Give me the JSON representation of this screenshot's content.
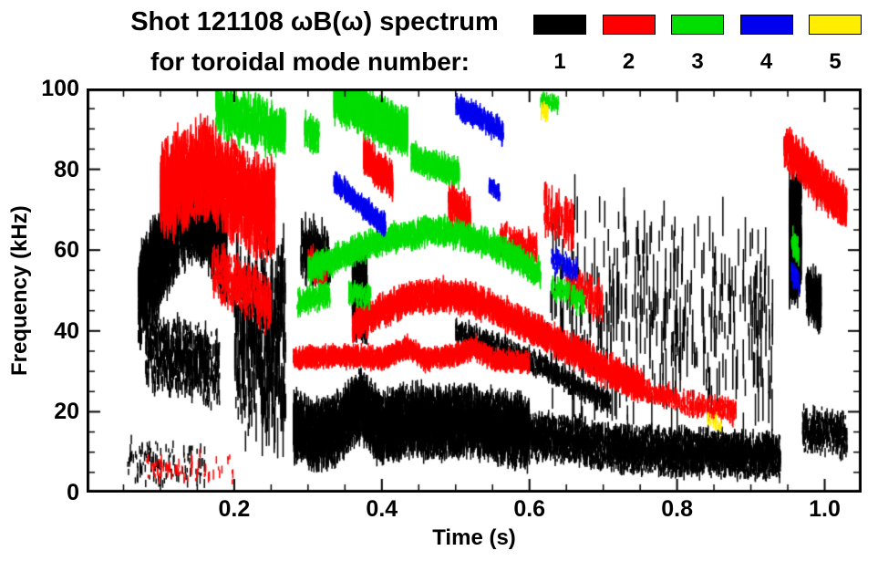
{
  "chart_data": {
    "type": "scatter",
    "title": "Shot 121108 ωB(ω) spectrum",
    "subtitle": "for toroidal mode number:",
    "xlabel": "Time (s)",
    "ylabel": "Frequency (kHz)",
    "xlim": [
      0,
      1.05
    ],
    "ylim": [
      0,
      100
    ],
    "xticks": [
      0.2,
      0.4,
      0.6,
      0.8,
      1.0
    ],
    "yticks": [
      0,
      20,
      40,
      60,
      80,
      100
    ],
    "x_minor_step": 0.05,
    "y_minor_step": 5,
    "x_minors_per_major": 4,
    "y_minors_per_major": 4,
    "grid": false,
    "legend_position": "top-right",
    "legend": [
      {
        "label": "1",
        "color": "#000000"
      },
      {
        "label": "2",
        "color": "#ff0000"
      },
      {
        "label": "3",
        "color": "#00dd00"
      },
      {
        "label": "4",
        "color": "#0000ee"
      },
      {
        "label": "5",
        "color": "#ffee00"
      }
    ],
    "series": [
      {
        "name": "toroidal mode n=1",
        "color": "#000000",
        "clusters": [
          {
            "path": [
              [
                0.055,
                8
              ],
              [
                0.1,
                7
              ],
              [
                0.16,
                6
              ]
            ],
            "spread": 6,
            "n": 120,
            "seg": 2
          },
          {
            "path": [
              [
                0.07,
                48
              ],
              [
                0.09,
                55
              ],
              [
                0.11,
                62
              ],
              [
                0.13,
                68
              ],
              [
                0.15,
                70
              ],
              [
                0.17,
                66
              ],
              [
                0.19,
                58
              ]
            ],
            "spread": 13,
            "n": 2600,
            "seg": 4
          },
          {
            "path": [
              [
                0.08,
                35
              ],
              [
                0.13,
                33
              ],
              [
                0.18,
                30
              ]
            ],
            "spread": 10,
            "n": 700,
            "seg": 3
          },
          {
            "path": [
              [
                0.2,
                40
              ],
              [
                0.27,
                38
              ]
            ],
            "spread": 28,
            "n": 420,
            "seg": 8
          },
          {
            "path": [
              [
                0.28,
                17
              ],
              [
                0.31,
                14
              ],
              [
                0.34,
                16
              ],
              [
                0.37,
                22
              ],
              [
                0.4,
                16
              ],
              [
                0.44,
                18
              ],
              [
                0.48,
                17
              ],
              [
                0.52,
                18
              ],
              [
                0.56,
                16
              ],
              [
                0.6,
                15
              ]
            ],
            "spread": 9,
            "n": 6500,
            "seg": 3
          },
          {
            "path": [
              [
                0.6,
                14
              ],
              [
                0.66,
                13
              ],
              [
                0.72,
                11
              ],
              [
                0.78,
                10
              ],
              [
                0.84,
                10
              ],
              [
                0.9,
                9
              ],
              [
                0.94,
                9
              ]
            ],
            "spread": 6,
            "n": 4200,
            "seg": 2
          },
          {
            "path": [
              [
                0.5,
                40
              ],
              [
                0.56,
                36
              ],
              [
                0.62,
                31
              ],
              [
                0.67,
                26
              ],
              [
                0.71,
                22
              ]
            ],
            "spread": 3,
            "n": 900,
            "seg": 2
          },
          {
            "path": [
              [
                0.36,
                50
              ],
              [
                0.38,
                48
              ]
            ],
            "spread": 11,
            "n": 600,
            "seg": 4
          },
          {
            "path": [
              [
                0.62,
                45
              ],
              [
                0.93,
                42
              ]
            ],
            "spread": 30,
            "n": 380,
            "seg": 9
          },
          {
            "path": [
              [
                0.29,
                60
              ],
              [
                0.33,
                58
              ]
            ],
            "spread": 8,
            "n": 200,
            "seg": 5
          },
          {
            "path": [
              [
                0.952,
                62
              ],
              [
                0.968,
                64
              ]
            ],
            "spread": 16,
            "n": 1100,
            "seg": 4
          },
          {
            "path": [
              [
                0.975,
                50
              ],
              [
                0.995,
                47
              ]
            ],
            "spread": 7,
            "n": 260,
            "seg": 3
          },
          {
            "path": [
              [
                0.97,
                16
              ],
              [
                1.03,
                14
              ]
            ],
            "spread": 6,
            "n": 450,
            "seg": 2
          }
        ]
      },
      {
        "name": "toroidal mode n=2",
        "color": "#ff0000",
        "clusters": [
          {
            "path": [
              [
                0.1,
                74
              ],
              [
                0.13,
                78
              ],
              [
                0.16,
                80
              ],
              [
                0.19,
                76
              ],
              [
                0.22,
                72
              ],
              [
                0.255,
                70
              ]
            ],
            "spread": 12,
            "n": 2300,
            "seg": 5
          },
          {
            "path": [
              [
                0.17,
                55
              ],
              [
                0.22,
                50
              ],
              [
                0.25,
                46
              ]
            ],
            "spread": 7,
            "n": 450,
            "seg": 3
          },
          {
            "path": [
              [
                0.08,
                6
              ],
              [
                0.2,
                6
              ]
            ],
            "spread": 4,
            "n": 70,
            "seg": 2
          },
          {
            "path": [
              [
                0.28,
                33
              ],
              [
                0.34,
                34
              ],
              [
                0.4,
                33
              ],
              [
                0.435,
                36
              ],
              [
                0.46,
                33
              ],
              [
                0.5,
                34
              ],
              [
                0.525,
                36
              ],
              [
                0.55,
                33
              ],
              [
                0.6,
                32
              ]
            ],
            "spread": 2.5,
            "n": 2600,
            "seg": 2
          },
          {
            "path": [
              [
                0.36,
                41
              ],
              [
                0.4,
                45
              ],
              [
                0.44,
                48
              ],
              [
                0.48,
                49
              ],
              [
                0.52,
                48
              ],
              [
                0.56,
                45
              ],
              [
                0.6,
                41
              ],
              [
                0.64,
                37
              ],
              [
                0.68,
                33
              ],
              [
                0.72,
                29
              ],
              [
                0.755,
                26
              ]
            ],
            "spread": 3.5,
            "n": 3200,
            "seg": 3
          },
          {
            "path": [
              [
                0.755,
                25
              ],
              [
                0.82,
                22
              ],
              [
                0.88,
                20
              ]
            ],
            "spread": 3,
            "n": 420,
            "seg": 2
          },
          {
            "path": [
              [
                0.375,
                84
              ],
              [
                0.395,
                80
              ],
              [
                0.415,
                77
              ]
            ],
            "spread": 4,
            "n": 520,
            "seg": 3
          },
          {
            "path": [
              [
                0.3,
                57
              ],
              [
                0.325,
                55
              ]
            ],
            "spread": 4,
            "n": 120,
            "seg": 3
          },
          {
            "path": [
              [
                0.49,
                72
              ],
              [
                0.52,
                68
              ]
            ],
            "spread": 5,
            "n": 260,
            "seg": 3
          },
          {
            "path": [
              [
                0.56,
                63
              ],
              [
                0.61,
                60
              ]
            ],
            "spread": 4,
            "n": 180,
            "seg": 3
          },
          {
            "path": [
              [
                0.62,
                70
              ],
              [
                0.66,
                66
              ]
            ],
            "spread": 6,
            "n": 140,
            "seg": 4
          },
          {
            "path": [
              [
                0.65,
                52
              ],
              [
                0.7,
                47
              ]
            ],
            "spread": 5,
            "n": 160,
            "seg": 3
          },
          {
            "path": [
              [
                0.945,
                86
              ],
              [
                0.97,
                81
              ],
              [
                1.0,
                75
              ],
              [
                1.03,
                70
              ]
            ],
            "spread": 5,
            "n": 750,
            "seg": 4
          }
        ]
      },
      {
        "name": "toroidal mode n=3",
        "color": "#00dd00",
        "clusters": [
          {
            "path": [
              [
                0.175,
                95
              ],
              [
                0.22,
                92
              ],
              [
                0.27,
                89
              ]
            ],
            "spread": 6,
            "n": 650,
            "seg": 4
          },
          {
            "path": [
              [
                0.295,
                90
              ],
              [
                0.315,
                88
              ]
            ],
            "spread": 4,
            "n": 120,
            "seg": 3
          },
          {
            "path": [
              [
                0.335,
                98
              ],
              [
                0.37,
                95
              ],
              [
                0.405,
                91
              ],
              [
                0.435,
                89
              ]
            ],
            "spread": 5,
            "n": 1500,
            "seg": 4
          },
          {
            "path": [
              [
                0.44,
                83
              ],
              [
                0.47,
                81
              ],
              [
                0.505,
                79
              ]
            ],
            "spread": 3,
            "n": 480,
            "seg": 3
          },
          {
            "path": [
              [
                0.3,
                55
              ],
              [
                0.34,
                58
              ],
              [
                0.38,
                61
              ],
              [
                0.42,
                63
              ],
              [
                0.46,
                65
              ],
              [
                0.5,
                64
              ],
              [
                0.54,
                62
              ],
              [
                0.58,
                58
              ],
              [
                0.615,
                54
              ]
            ],
            "spread": 3,
            "n": 1900,
            "seg": 3
          },
          {
            "path": [
              [
                0.285,
                47
              ],
              [
                0.33,
                49
              ]
            ],
            "spread": 3,
            "n": 300,
            "seg": 2
          },
          {
            "path": [
              [
                0.355,
                50
              ],
              [
                0.385,
                48
              ]
            ],
            "spread": 3,
            "n": 160,
            "seg": 2
          },
          {
            "path": [
              [
                0.63,
                51
              ],
              [
                0.675,
                47
              ]
            ],
            "spread": 3,
            "n": 150,
            "seg": 2
          },
          {
            "path": [
              [
                0.615,
                97
              ],
              [
                0.64,
                96
              ]
            ],
            "spread": 2,
            "n": 70,
            "seg": 2
          },
          {
            "path": [
              [
                0.955,
                62
              ],
              [
                0.965,
                60
              ]
            ],
            "spread": 4,
            "n": 70,
            "seg": 2
          }
        ]
      },
      {
        "name": "toroidal mode n=4",
        "color": "#0000ee",
        "clusters": [
          {
            "path": [
              [
                0.335,
                77
              ],
              [
                0.36,
                73
              ],
              [
                0.385,
                69
              ],
              [
                0.405,
                66
              ]
            ],
            "spread": 2,
            "n": 420,
            "seg": 3
          },
          {
            "path": [
              [
                0.5,
                96
              ],
              [
                0.53,
                93
              ],
              [
                0.565,
                89
              ]
            ],
            "spread": 2.5,
            "n": 330,
            "seg": 3
          },
          {
            "path": [
              [
                0.545,
                76
              ],
              [
                0.56,
                74
              ]
            ],
            "spread": 2,
            "n": 80,
            "seg": 2
          },
          {
            "path": [
              [
                0.63,
                58
              ],
              [
                0.665,
                55
              ]
            ],
            "spread": 3,
            "n": 110,
            "seg": 2
          },
          {
            "path": [
              [
                0.955,
                54
              ],
              [
                0.965,
                52
              ]
            ],
            "spread": 3,
            "n": 60,
            "seg": 2
          }
        ]
      },
      {
        "name": "toroidal mode n=5",
        "color": "#ffee00",
        "clusters": [
          {
            "path": [
              [
                0.615,
                95
              ],
              [
                0.625,
                94
              ]
            ],
            "spread": 2,
            "n": 30,
            "seg": 2
          },
          {
            "path": [
              [
                0.84,
                18
              ],
              [
                0.86,
                17
              ]
            ],
            "spread": 2,
            "n": 25,
            "seg": 2
          }
        ]
      }
    ]
  }
}
